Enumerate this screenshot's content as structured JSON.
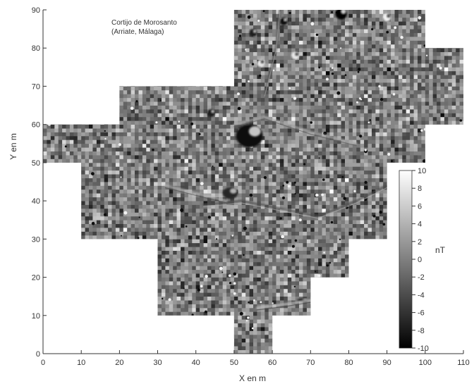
{
  "chart_data": {
    "type": "heatmap",
    "title": "Cortijo de Morosanto",
    "subtitle": "(Arriate, Málaga)",
    "xlabel": "X en m",
    "ylabel": "Y en m",
    "xlim": [
      0,
      110
    ],
    "ylim": [
      0,
      90
    ],
    "x_ticks": [
      0,
      10,
      20,
      30,
      40,
      50,
      60,
      70,
      80,
      90,
      100,
      110
    ],
    "y_ticks": [
      0,
      10,
      20,
      30,
      40,
      50,
      60,
      70,
      80,
      90
    ],
    "colorbar": {
      "label": "nT",
      "range": [
        -10,
        10
      ],
      "ticks": [
        10,
        8,
        6,
        4,
        2,
        0,
        -2,
        -4,
        -6,
        -8,
        -10
      ],
      "colors": [
        "#000000",
        "#ffffff"
      ]
    },
    "survey_grid_cells_m": 10,
    "survey_extent_polygon": [
      [
        50,
        0
      ],
      [
        60,
        0
      ],
      [
        60,
        10
      ],
      [
        70,
        10
      ],
      [
        70,
        20
      ],
      [
        80,
        20
      ],
      [
        80,
        30
      ],
      [
        90,
        30
      ],
      [
        90,
        50
      ],
      [
        100,
        50
      ],
      [
        100,
        60
      ],
      [
        110,
        60
      ],
      [
        110,
        80
      ],
      [
        100,
        80
      ],
      [
        100,
        90
      ],
      [
        50,
        90
      ],
      [
        50,
        70
      ],
      [
        20,
        70
      ],
      [
        20,
        60
      ],
      [
        0,
        60
      ],
      [
        0,
        50
      ],
      [
        10,
        50
      ],
      [
        10,
        30
      ],
      [
        30,
        30
      ],
      [
        30,
        10
      ],
      [
        50,
        10
      ]
    ],
    "features": [
      {
        "type": "anomaly",
        "x": 54,
        "y": 57,
        "w": 7,
        "h": 6,
        "value": -9
      },
      {
        "type": "anomaly",
        "x": 49,
        "y": 42,
        "w": 4,
        "h": 3,
        "value": -7
      },
      {
        "type": "anomaly",
        "x": 78,
        "y": 89,
        "w": 3,
        "h": 3,
        "value": -10
      },
      {
        "type": "anomaly",
        "x": 63,
        "y": 87,
        "w": 2,
        "h": 2,
        "value": -9
      },
      {
        "type": "anomaly",
        "x": 90,
        "y": 88,
        "w": 2,
        "h": 2,
        "value": 9
      },
      {
        "type": "anomaly",
        "x": 66,
        "y": 78,
        "w": 2,
        "h": 2,
        "value": 8
      },
      {
        "type": "anomaly",
        "x": 55,
        "y": 84,
        "w": 2,
        "h": 2,
        "value": -8
      },
      {
        "type": "anomaly",
        "x": 44,
        "y": 63,
        "w": 2,
        "h": 2,
        "value": -8
      },
      {
        "type": "anomaly",
        "x": 57,
        "y": 76,
        "w": 2,
        "h": 2,
        "value": 8
      },
      {
        "type": "anomaly",
        "x": 68,
        "y": 14,
        "w": 3,
        "h": 1,
        "value": -7
      },
      {
        "type": "linear",
        "points": [
          [
            42,
            39
          ],
          [
            52,
            40
          ],
          [
            62,
            38
          ],
          [
            72,
            36
          ],
          [
            82,
            40
          ],
          [
            90,
            44
          ]
        ],
        "value": -4
      },
      {
        "type": "linear",
        "points": [
          [
            32,
            44
          ],
          [
            40,
            42
          ],
          [
            48,
            40
          ]
        ],
        "value": 4
      },
      {
        "type": "linear",
        "points": [
          [
            56,
            12
          ],
          [
            64,
            13
          ],
          [
            70,
            14
          ]
        ],
        "value": 5
      },
      {
        "type": "linear",
        "points": [
          [
            58,
            68
          ],
          [
            61,
            80
          ],
          [
            62,
            90
          ]
        ],
        "value": -3
      },
      {
        "type": "linear",
        "points": [
          [
            50,
            60
          ],
          [
            58,
            62
          ],
          [
            70,
            58
          ],
          [
            82,
            55
          ]
        ],
        "value": 3
      }
    ]
  }
}
